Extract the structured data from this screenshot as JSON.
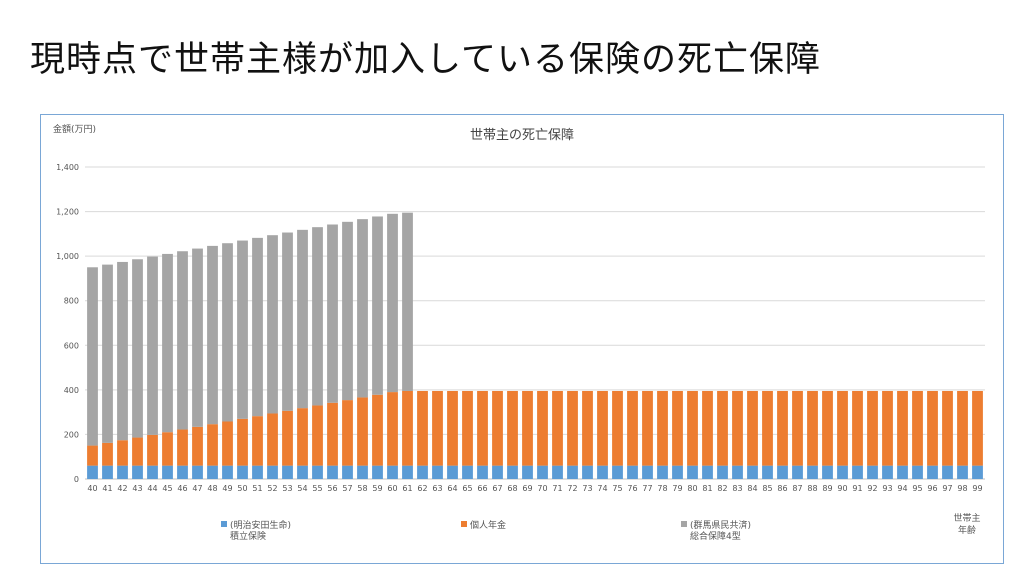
{
  "slide": {
    "title": "現時点で世帯主様が加入している保険の死亡保障"
  },
  "chart_data": {
    "type": "bar",
    "stacked": true,
    "title": "世帯主の死亡保障",
    "ylabel": "金額(万円)",
    "xlabel_lines": [
      "世帯主",
      "年齢"
    ],
    "ylim": [
      0,
      1400
    ],
    "yticks": [
      "0",
      "200",
      "400",
      "600",
      "800",
      "1,000",
      "1,200",
      "1,400"
    ],
    "ytick_values": [
      0,
      200,
      400,
      600,
      800,
      1000,
      1200,
      1400
    ],
    "grid": true,
    "legend_position": "bottom",
    "categories": [
      "40",
      "41",
      "42",
      "43",
      "44",
      "45",
      "46",
      "47",
      "48",
      "49",
      "50",
      "51",
      "52",
      "53",
      "54",
      "55",
      "56",
      "57",
      "58",
      "59",
      "60",
      "61",
      "62",
      "63",
      "64",
      "65",
      "66",
      "67",
      "68",
      "69",
      "70",
      "71",
      "72",
      "73",
      "74",
      "75",
      "76",
      "77",
      "78",
      "79",
      "80",
      "81",
      "82",
      "83",
      "84",
      "85",
      "86",
      "87",
      "88",
      "89",
      "90",
      "91",
      "92",
      "93",
      "94",
      "95",
      "96",
      "97",
      "98",
      "99"
    ],
    "series": [
      {
        "name_lines": [
          "(明治安田生命)",
          "積立保険"
        ],
        "color": "#5b9bd5",
        "values": [
          60,
          60,
          60,
          60,
          60,
          60,
          60,
          60,
          60,
          60,
          60,
          60,
          60,
          60,
          60,
          60,
          60,
          60,
          60,
          60,
          60,
          60,
          60,
          60,
          60,
          60,
          60,
          60,
          60,
          60,
          60,
          60,
          60,
          60,
          60,
          60,
          60,
          60,
          60,
          60,
          60,
          60,
          60,
          60,
          60,
          60,
          60,
          60,
          60,
          60,
          60,
          60,
          60,
          60,
          60,
          60,
          60,
          60,
          60,
          60
        ]
      },
      {
        "name_lines": [
          "個人年金"
        ],
        "color": "#ed7d31",
        "values": [
          90,
          102,
          114,
          126,
          138,
          150,
          162,
          174,
          186,
          198,
          210,
          222,
          234,
          246,
          258,
          270,
          282,
          294,
          306,
          318,
          330,
          335,
          335,
          335,
          335,
          335,
          335,
          335,
          335,
          335,
          335,
          335,
          335,
          335,
          335,
          335,
          335,
          335,
          335,
          335,
          335,
          335,
          335,
          335,
          335,
          335,
          335,
          335,
          335,
          335,
          335,
          335,
          335,
          335,
          335,
          335,
          335,
          335,
          335,
          335
        ]
      },
      {
        "name_lines": [
          "(群馬県民共済)",
          "総合保障4型"
        ],
        "color": "#a5a5a5",
        "values": [
          800,
          800,
          800,
          800,
          800,
          800,
          800,
          800,
          800,
          800,
          800,
          800,
          800,
          800,
          800,
          800,
          800,
          800,
          800,
          800,
          800,
          800,
          0,
          0,
          0,
          0,
          0,
          0,
          0,
          0,
          0,
          0,
          0,
          0,
          0,
          0,
          0,
          0,
          0,
          0,
          0,
          0,
          0,
          0,
          0,
          0,
          0,
          0,
          0,
          0,
          0,
          0,
          0,
          0,
          0,
          0,
          0,
          0,
          0,
          0
        ]
      }
    ]
  }
}
